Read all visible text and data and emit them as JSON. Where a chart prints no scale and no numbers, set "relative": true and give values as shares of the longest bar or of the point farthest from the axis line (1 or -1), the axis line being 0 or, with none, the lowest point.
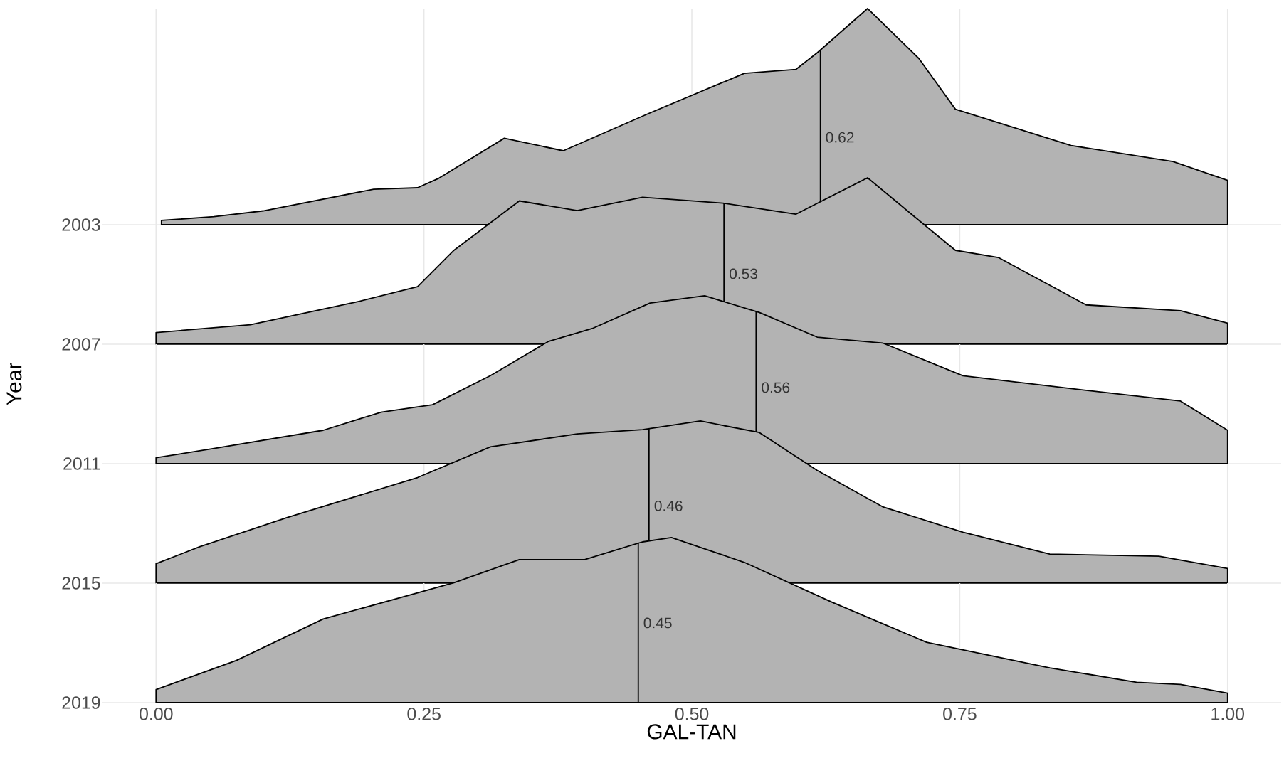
{
  "chart_data": [
    {
      "type": "area",
      "relative": true,
      "ylabel": "2003",
      "xlim": [
        -0.05,
        1.05
      ],
      "xticks": [
        0,
        0.25,
        0.5,
        0.75,
        1
      ],
      "grid": true,
      "tick_labels": false,
      "series": [
        {
          "color": "#b3b3b3",
          "x": [
            0.005,
            0.054,
            0.1,
            0.203,
            0.244,
            0.264,
            0.325,
            0.38,
            0.461,
            0.549,
            0.597,
            0.617,
            0.664,
            0.712,
            0.746,
            0.8,
            0.854,
            0.949,
            1.0
          ],
          "values": [
            0.02,
            0.037,
            0.064,
            0.164,
            0.171,
            0.215,
            0.4,
            0.342,
            0.517,
            0.7,
            0.718,
            0.795,
            1.0,
            0.768,
            0.534,
            0.45,
            0.366,
            0.292,
            0.205
          ]
        }
      ],
      "ref_lines": [
        {
          "axis": "x",
          "value": 0.62,
          "label": "0.62"
        }
      ]
    },
    {
      "type": "area",
      "relative": true,
      "ylabel": "2007",
      "xlim": [
        -0.05,
        1.05
      ],
      "xticks": [
        0,
        0.25,
        0.5,
        0.75,
        1
      ],
      "grid": true,
      "tick_labels": false,
      "series": [
        {
          "color": "#b3b3b3",
          "x": [
            0,
            0.088,
            0.19,
            0.244,
            0.278,
            0.339,
            0.393,
            0.454,
            0.529,
            0.597,
            0.664,
            0.705,
            0.746,
            0.786,
            0.868,
            0.956,
            1.0
          ],
          "values": [
            0.07,
            0.117,
            0.258,
            0.345,
            0.564,
            0.861,
            0.803,
            0.883,
            0.848,
            0.781,
            1.0,
            0.781,
            0.564,
            0.521,
            0.236,
            0.201,
            0.126
          ]
        }
      ],
      "ref_lines": [
        {
          "axis": "x",
          "value": 0.53,
          "label": "0.53"
        }
      ]
    },
    {
      "type": "area",
      "relative": true,
      "ylabel": "2011",
      "annotations": [
        "Year"
      ],
      "xlim": [
        -0.05,
        1.05
      ],
      "xticks": [
        0,
        0.25,
        0.5,
        0.75,
        1
      ],
      "grid": true,
      "tick_labels": false,
      "series": [
        {
          "color": "#b3b3b3",
          "x": [
            0,
            0.054,
            0.156,
            0.21,
            0.258,
            0.312,
            0.366,
            0.407,
            0.461,
            0.512,
            0.563,
            0.617,
            0.678,
            0.753,
            0.868,
            0.956,
            1.0
          ],
          "values": [
            0.035,
            0.09,
            0.199,
            0.307,
            0.351,
            0.524,
            0.728,
            0.805,
            0.957,
            1.0,
            0.901,
            0.754,
            0.719,
            0.524,
            0.437,
            0.373,
            0.199
          ]
        }
      ],
      "ref_lines": [
        {
          "axis": "x",
          "value": 0.56,
          "label": "0.56"
        }
      ]
    },
    {
      "type": "area",
      "relative": true,
      "ylabel": "2015",
      "xlim": [
        -0.05,
        1.05
      ],
      "xticks": [
        0,
        0.25,
        0.5,
        0.75,
        1
      ],
      "grid": true,
      "tick_labels": false,
      "series": [
        {
          "color": "#b3b3b3",
          "x": [
            0,
            0.041,
            0.122,
            0.244,
            0.312,
            0.393,
            0.454,
            0.508,
            0.563,
            0.617,
            0.678,
            0.753,
            0.834,
            0.936,
            1.0
          ],
          "values": [
            0.12,
            0.225,
            0.404,
            0.651,
            0.84,
            0.92,
            0.947,
            1.0,
            0.929,
            0.695,
            0.471,
            0.314,
            0.179,
            0.166,
            0.09
          ]
        }
      ],
      "ref_lines": [
        {
          "axis": "x",
          "value": 0.46,
          "label": "0.46"
        }
      ]
    },
    {
      "type": "area",
      "relative": true,
      "ylabel": "2019",
      "xlabel": "GAL-TAN",
      "xlim": [
        -0.05,
        1.05
      ],
      "xticks": [
        {
          "value": 0,
          "label": "0.00"
        },
        {
          "value": 0.25,
          "label": "0.25"
        },
        {
          "value": 0.5,
          "label": "0.50"
        },
        {
          "value": 0.75,
          "label": "0.75"
        },
        {
          "value": 1,
          "label": "1.00"
        }
      ],
      "grid": true,
      "tick_labels": "x",
      "series": [
        {
          "color": "#b3b3b3",
          "x": [
            0,
            0.075,
            0.156,
            0.244,
            0.278,
            0.339,
            0.4,
            0.454,
            0.481,
            0.549,
            0.631,
            0.719,
            0.834,
            0.915,
            0.956,
            1.0
          ],
          "values": [
            0.079,
            0.256,
            0.507,
            0.665,
            0.727,
            0.867,
            0.867,
            0.974,
            1.0,
            0.85,
            0.608,
            0.366,
            0.211,
            0.123,
            0.11,
            0.058
          ]
        }
      ],
      "ref_lines": [
        {
          "axis": "x",
          "value": 0.45,
          "label": "0.45"
        }
      ]
    }
  ]
}
